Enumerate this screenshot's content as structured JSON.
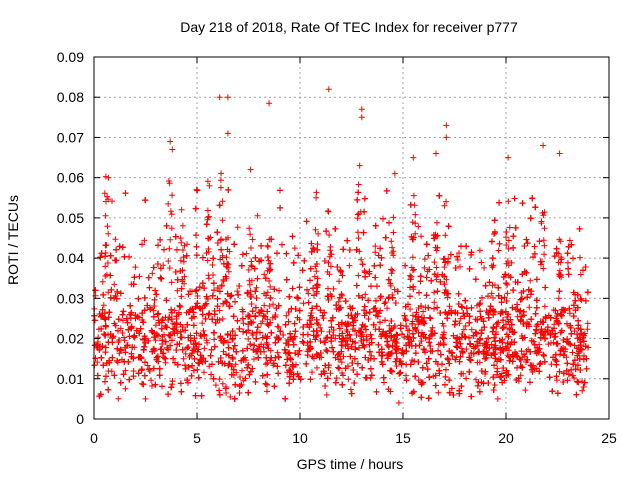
{
  "chart_data": {
    "type": "scatter",
    "title": "Day 218 of 2018, Rate Of TEC Index for receiver p777",
    "xlabel": "GPS time / hours",
    "ylabel": "ROTI / TECUs",
    "xlim": [
      0,
      25
    ],
    "ylim": [
      0,
      0.09
    ],
    "x_ticks": [
      0,
      5,
      10,
      15,
      20,
      25
    ],
    "x_tick_labels": [
      "0",
      "5",
      "10",
      "15",
      "20",
      "25"
    ],
    "y_ticks": [
      0,
      0.01,
      0.02,
      0.03,
      0.04,
      0.05,
      0.06,
      0.07,
      0.08,
      0.09
    ],
    "y_tick_labels": [
      "0",
      "0.01",
      "0.02",
      "0.03",
      "0.04",
      "0.05",
      "0.06",
      "0.07",
      "0.08",
      "0.09"
    ],
    "grid": true,
    "marker": "+",
    "series_color": "#ff0000",
    "data_time_range_hours": [
      0,
      24
    ],
    "bulk_range": [
      0.01,
      0.035
    ],
    "notable_points": [
      {
        "x": 6.1,
        "y": 0.08
      },
      {
        "x": 6.5,
        "y": 0.08
      },
      {
        "x": 8.5,
        "y": 0.0785
      },
      {
        "x": 11.4,
        "y": 0.082
      },
      {
        "x": 13.0,
        "y": 0.077
      },
      {
        "x": 13.0,
        "y": 0.075
      },
      {
        "x": 17.1,
        "y": 0.073
      },
      {
        "x": 17.1,
        "y": 0.07
      },
      {
        "x": 6.5,
        "y": 0.071
      },
      {
        "x": 3.7,
        "y": 0.069
      },
      {
        "x": 3.8,
        "y": 0.067
      },
      {
        "x": 21.8,
        "y": 0.068
      },
      {
        "x": 22.6,
        "y": 0.066
      },
      {
        "x": 16.6,
        "y": 0.066
      },
      {
        "x": 15.5,
        "y": 0.065
      },
      {
        "x": 20.1,
        "y": 0.065
      },
      {
        "x": 0.7,
        "y": 0.06
      },
      {
        "x": 5.6,
        "y": 0.058
      },
      {
        "x": 14.6,
        "y": 0.061
      },
      {
        "x": 7.6,
        "y": 0.062
      },
      {
        "x": 12.9,
        "y": 0.063
      },
      {
        "x": 14.8,
        "y": 0.004
      },
      {
        "x": 2.5,
        "y": 0.005
      },
      {
        "x": 11.3,
        "y": 0.006
      },
      {
        "x": 19.6,
        "y": 0.005
      },
      {
        "x": 23.7,
        "y": 0.007
      }
    ]
  }
}
